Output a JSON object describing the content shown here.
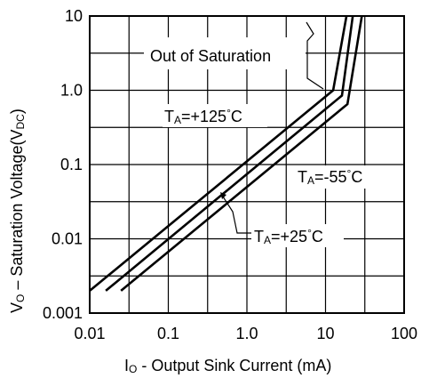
{
  "chart_data": {
    "type": "line",
    "x_scale": "log",
    "y_scale": "log",
    "xlim": [
      0.01,
      100
    ],
    "ylim": [
      0.001,
      10
    ],
    "grid": true,
    "x_ticks": [
      "0.01",
      "0.1",
      "1.0",
      "10",
      "100"
    ],
    "y_ticks": [
      "0.001",
      "0.01",
      "0.1",
      "1.0",
      "10"
    ],
    "xlabel": {
      "main": "I",
      "sub": "O",
      "rest": " - Output Sink Current (mA)"
    },
    "ylabel": {
      "main": "V",
      "sub": "O",
      "mid": " – Saturation Voltage(V",
      "sub2": "DC",
      "end": ")"
    },
    "series": [
      {
        "name": "TA=+125°C",
        "x": [
          0.01,
          12.5,
          18.5
        ],
        "y": [
          0.002,
          1.0,
          10
        ]
      },
      {
        "name": "TA=+25°C",
        "x": [
          0.016,
          16.2,
          22.2
        ],
        "y": [
          0.002,
          0.85,
          10
        ]
      },
      {
        "name": "TA=-55°C",
        "x": [
          0.025,
          19,
          29
        ],
        "y": [
          0.002,
          0.65,
          10
        ]
      }
    ],
    "annotations": [
      {
        "label": "out-of-saturation",
        "text": "Out of Saturation"
      },
      {
        "label": "ta-125",
        "main": "T",
        "sub": "A",
        "rest": "=+125",
        "deg": "°",
        "unit": "C"
      },
      {
        "label": "ta-55",
        "main": "T",
        "sub": "A",
        "rest": "=-55",
        "deg": "°",
        "unit": "C"
      },
      {
        "label": "ta-25",
        "main": "T",
        "sub": "A",
        "rest": "=+25",
        "deg": "°",
        "unit": "C"
      }
    ]
  }
}
